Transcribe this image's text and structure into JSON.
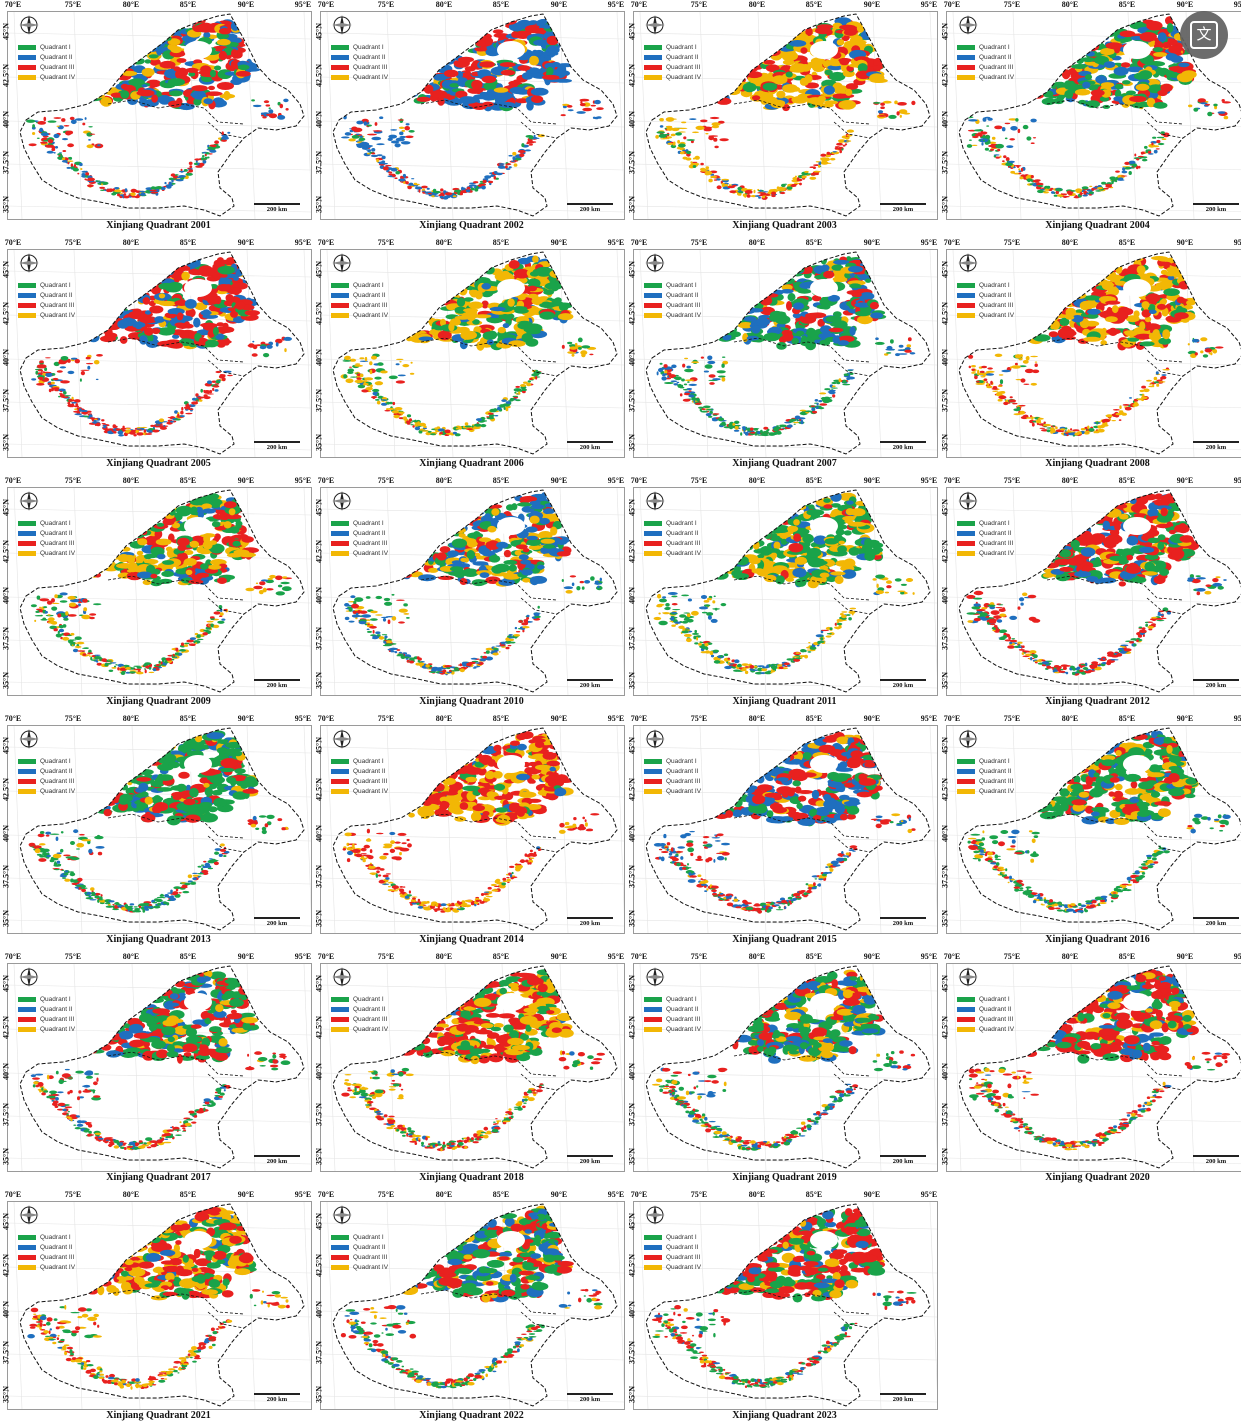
{
  "longitude_labels": [
    "70°E",
    "75°E",
    "80°E",
    "85°E",
    "90°E",
    "95°E"
  ],
  "latitude_labels": [
    "45°N",
    "42.5°N",
    "40°N",
    "37.5°N",
    "35°N"
  ],
  "legend": [
    {
      "label": "Quadrant I",
      "color": "#1aa34a"
    },
    {
      "label": "Quadrant II",
      "color": "#1f6fbf"
    },
    {
      "label": "Quadrant III",
      "color": "#e8211f"
    },
    {
      "label": "Quadrant IV",
      "color": "#f2b705"
    }
  ],
  "scale_label": "200 km",
  "compass_icon": "north-arrow-compass-icon",
  "translate_icon": "translate-icon",
  "translate_glyph": "文",
  "panels": [
    {
      "title": "Xinjiang Quadrant 2001",
      "mix": [
        0.22,
        0.3,
        0.36,
        0.12
      ]
    },
    {
      "title": "Xinjiang Quadrant 2002",
      "mix": [
        0.1,
        0.52,
        0.3,
        0.08
      ]
    },
    {
      "title": "Xinjiang Quadrant 2003",
      "mix": [
        0.1,
        0.06,
        0.3,
        0.54
      ]
    },
    {
      "title": "Xinjiang Quadrant 2004",
      "mix": [
        0.34,
        0.2,
        0.34,
        0.12
      ]
    },
    {
      "title": "Xinjiang Quadrant 2005",
      "mix": [
        0.12,
        0.26,
        0.54,
        0.08
      ]
    },
    {
      "title": "Xinjiang Quadrant 2006",
      "mix": [
        0.36,
        0.1,
        0.14,
        0.4
      ]
    },
    {
      "title": "Xinjiang Quadrant 2007",
      "mix": [
        0.46,
        0.3,
        0.16,
        0.08
      ]
    },
    {
      "title": "Xinjiang Quadrant 2008",
      "mix": [
        0.14,
        0.06,
        0.34,
        0.46
      ]
    },
    {
      "title": "Xinjiang Quadrant 2009",
      "mix": [
        0.34,
        0.12,
        0.24,
        0.3
      ]
    },
    {
      "title": "Xinjiang Quadrant 2010",
      "mix": [
        0.3,
        0.32,
        0.2,
        0.18
      ]
    },
    {
      "title": "Xinjiang Quadrant 2011",
      "mix": [
        0.4,
        0.14,
        0.1,
        0.36
      ]
    },
    {
      "title": "Xinjiang Quadrant 2012",
      "mix": [
        0.26,
        0.18,
        0.46,
        0.1
      ]
    },
    {
      "title": "Xinjiang Quadrant 2013",
      "mix": [
        0.52,
        0.22,
        0.18,
        0.08
      ]
    },
    {
      "title": "Xinjiang Quadrant 2014",
      "mix": [
        0.06,
        0.06,
        0.5,
        0.38
      ]
    },
    {
      "title": "Xinjiang Quadrant 2015",
      "mix": [
        0.16,
        0.38,
        0.38,
        0.08
      ]
    },
    {
      "title": "Xinjiang Quadrant 2016",
      "mix": [
        0.46,
        0.12,
        0.22,
        0.2
      ]
    },
    {
      "title": "Xinjiang Quadrant 2017",
      "mix": [
        0.36,
        0.2,
        0.34,
        0.1
      ]
    },
    {
      "title": "Xinjiang Quadrant 2018",
      "mix": [
        0.2,
        0.06,
        0.4,
        0.34
      ]
    },
    {
      "title": "Xinjiang Quadrant 2019",
      "mix": [
        0.36,
        0.22,
        0.28,
        0.14
      ]
    },
    {
      "title": "Xinjiang Quadrant 2020",
      "mix": [
        0.24,
        0.16,
        0.48,
        0.12
      ]
    },
    {
      "title": "Xinjiang Quadrant 2021",
      "mix": [
        0.2,
        0.06,
        0.4,
        0.34
      ]
    },
    {
      "title": "Xinjiang Quadrant 2022",
      "mix": [
        0.4,
        0.2,
        0.26,
        0.14
      ]
    },
    {
      "title": "Xinjiang Quadrant 2023",
      "mix": [
        0.34,
        0.14,
        0.4,
        0.12
      ]
    }
  ]
}
